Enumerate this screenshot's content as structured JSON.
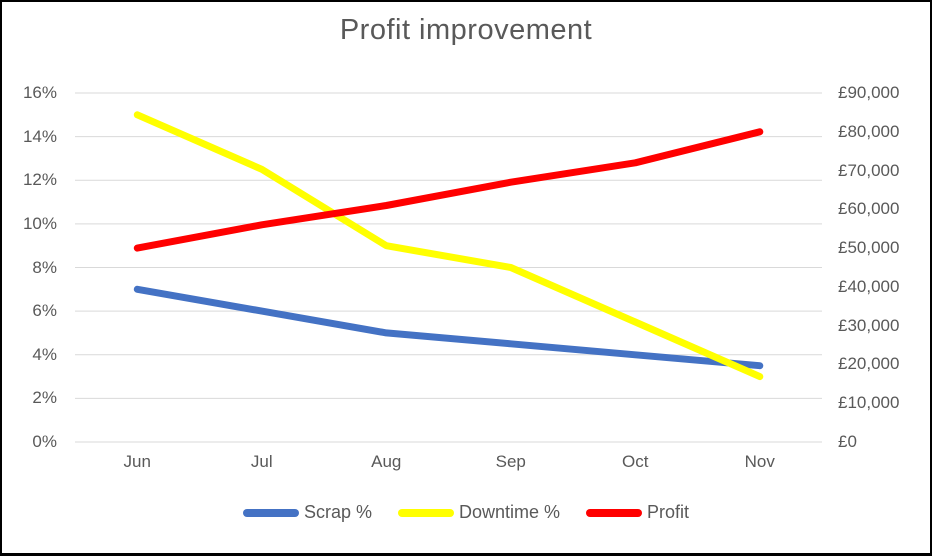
{
  "chart_data": {
    "type": "line",
    "title": "Profit improvement",
    "categories": [
      "Jun",
      "Jul",
      "Aug",
      "Sep",
      "Oct",
      "Nov"
    ],
    "series": [
      {
        "name": "Scrap %",
        "axis": "left",
        "color": "#4472C4",
        "values": [
          7,
          6,
          5,
          4.5,
          4,
          3.5
        ]
      },
      {
        "name": "Downtime %",
        "axis": "left",
        "color": "#FFFF00",
        "values": [
          15,
          12.5,
          9,
          8,
          5.5,
          3
        ]
      },
      {
        "name": "Profit",
        "axis": "right",
        "color": "#FF0000",
        "values": [
          50000,
          56000,
          61000,
          67000,
          72000,
          80000
        ]
      }
    ],
    "left_axis": {
      "min": 0,
      "max": 16,
      "step": 2,
      "format": "percent",
      "tick_labels": [
        "0%",
        "2%",
        "4%",
        "6%",
        "8%",
        "10%",
        "12%",
        "14%",
        "16%"
      ]
    },
    "right_axis": {
      "min": 0,
      "max": 90000,
      "step": 10000,
      "format": "gbp",
      "tick_labels": [
        "£0",
        "£10,000",
        "£20,000",
        "£30,000",
        "£40,000",
        "£50,000",
        "£60,000",
        "£70,000",
        "£80,000",
        "£90,000"
      ]
    },
    "grid": true,
    "gridline_color": "#D9D9D9",
    "text_color": "#595959",
    "legend_position": "bottom"
  }
}
